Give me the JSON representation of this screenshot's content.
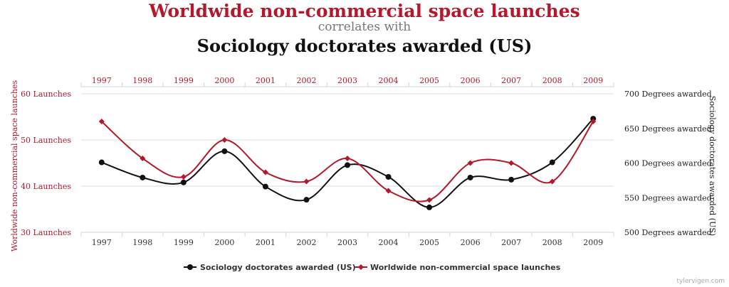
{
  "header": {
    "title": "Worldwide non-commercial space launches",
    "connector": "correlates with",
    "subtitle": "Sociology doctorates awarded (US)"
  },
  "source": "tylervigen.com",
  "colors": {
    "left_series": "#b3182c",
    "right_series": "#111111",
    "grid": "#dddddd",
    "axis": "#c8d6e0"
  },
  "chart_data": {
    "type": "line",
    "categories": [
      "1997",
      "1998",
      "1999",
      "2000",
      "2001",
      "2002",
      "2003",
      "2004",
      "2005",
      "2006",
      "2007",
      "2008",
      "2009"
    ],
    "y_left": {
      "label": "Worldwide non-commercial space launches",
      "range": [
        30,
        60
      ],
      "ticks": [
        30,
        40,
        50,
        60
      ],
      "tick_labels": [
        "30 Launches",
        "40 Launches",
        "50 Launches",
        "60 Launches"
      ]
    },
    "y_right": {
      "label": "Sociology doctorates awarded (US)",
      "range": [
        500,
        700
      ],
      "ticks": [
        500,
        550,
        600,
        650,
        700
      ],
      "tick_labels": [
        "500 Degrees awarded",
        "550 Degrees awarded",
        "600 Degrees awarded",
        "650 Degrees awarded",
        "700 Degrees awarded"
      ]
    },
    "grid": true,
    "legend": "bottom-center",
    "series": [
      {
        "name": "Sociology doctorates awarded (US)",
        "axis": "right",
        "marker": "circle",
        "color": "#111111",
        "values": [
          601,
          579,
          572,
          617,
          566,
          547,
          597,
          580,
          536,
          579,
          576,
          601,
          664
        ]
      },
      {
        "name": "Worldwide non-commercial space launches",
        "axis": "left",
        "marker": "diamond",
        "color": "#b3182c",
        "values": [
          54,
          46,
          42,
          50,
          43,
          41,
          46,
          39,
          37,
          45,
          45,
          41,
          54
        ]
      }
    ]
  }
}
